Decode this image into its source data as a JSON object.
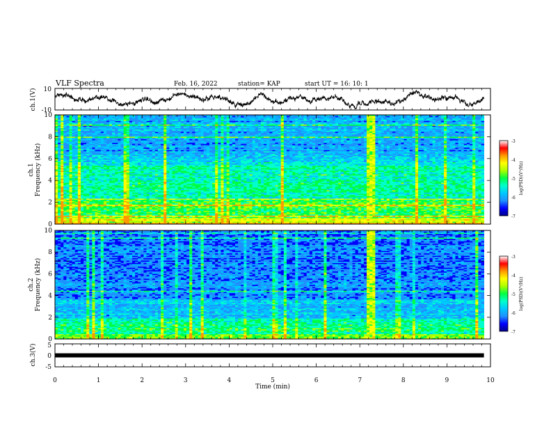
{
  "header": {
    "title": "VLF Spectra",
    "date": "Feb. 16, 2022",
    "station": "station= KAP",
    "start": "start  UT =   16: 10: 1"
  },
  "colors": {
    "spectrogram_scale": [
      "#00008b",
      "#0000ff",
      "#1e90ff",
      "#00c8ff",
      "#00ffcc",
      "#00ff44",
      "#aaff00",
      "#ffff00",
      "#ff9900",
      "#ff0000",
      "#ffffff"
    ]
  },
  "chart_data": [
    {
      "type": "line",
      "name": "ch1-waveform",
      "ylabel": "ch.1(V)",
      "xlim": [
        0,
        10
      ],
      "ylim": [
        -10,
        10
      ],
      "yticks": [
        "10",
        "-10"
      ],
      "data_end_min": 9.85,
      "line_color": "#000000"
    },
    {
      "type": "heatmap",
      "name": "ch1-spectrogram",
      "ylabel_top": "ch.1",
      "ylabel": "Frequency (kHz)",
      "xlim": [
        0,
        10
      ],
      "ylim": [
        0,
        10
      ],
      "yticks": [
        "0",
        "2",
        "4",
        "6",
        "8",
        "10"
      ],
      "colorbar": {
        "label": "log(PSD)(V²/Hz)",
        "ticks": [
          "-3",
          "-4",
          "-5",
          "-6",
          "-7"
        ],
        "range": [
          -7,
          -3
        ]
      },
      "event_time_min": 7.22
    },
    {
      "type": "heatmap",
      "name": "ch2-spectrogram",
      "ylabel_top": "ch.2",
      "ylabel": "Frequency (kHz)",
      "xlim": [
        0,
        10
      ],
      "ylim": [
        0,
        10
      ],
      "yticks": [
        "0",
        "2",
        "4",
        "6",
        "8",
        "10"
      ],
      "colorbar": {
        "label": "log(PSD)(V²/Hz)",
        "ticks": [
          "-3",
          "-4",
          "-5",
          "-6",
          "-7"
        ],
        "range": [
          -7,
          -3
        ]
      },
      "event_time_min": 7.22
    },
    {
      "type": "line",
      "name": "ch3-waveform",
      "ylabel": "ch.3(V)",
      "xlim": [
        0,
        10
      ],
      "ylim": [
        -5,
        5
      ],
      "yticks": [
        "5",
        "0",
        "-5"
      ],
      "data_end_min": 9.85,
      "line_color": "#000000"
    }
  ],
  "x_axis": {
    "label": "Time  (min)",
    "ticks": [
      "0",
      "1",
      "2",
      "3",
      "4",
      "5",
      "6",
      "7",
      "8",
      "9",
      "10"
    ]
  }
}
